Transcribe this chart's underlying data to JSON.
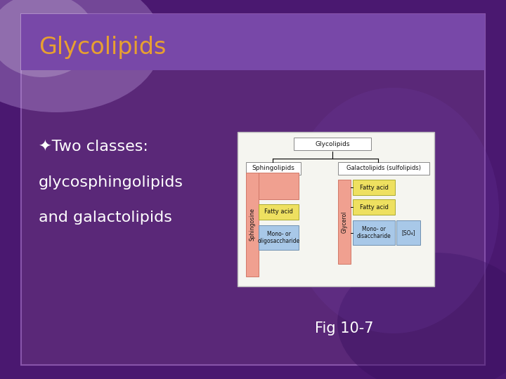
{
  "title": "Glycolipids",
  "title_color": "#E8A030",
  "bullet_symbol": "✦",
  "bullet_line1": "Two classes:",
  "bullet_line2": "glycosphingolipids",
  "bullet_line3": "and galactolipids",
  "bullet_color": "#FFFFFF",
  "fig_label": "Fig 10-7",
  "fig_label_color": "#FFFFFF",
  "slide_bg": "#5A2878",
  "title_bar_color": "#7040A0",
  "outer_bg": "#4A1870",
  "diagram_bg": "#F5F5F0",
  "diagram_border": "#BBBBBB",
  "color_pink": "#F0A090",
  "color_yellow": "#EEE060",
  "color_blue": "#A8C8E8",
  "color_white": "#FFFFFF",
  "color_black": "#111111"
}
